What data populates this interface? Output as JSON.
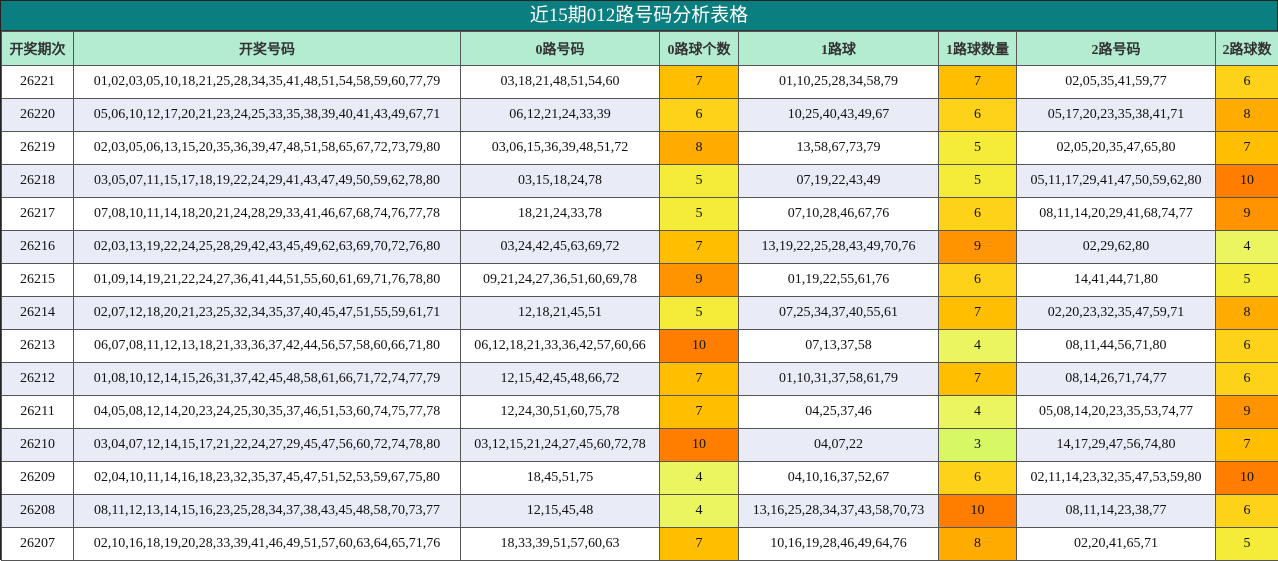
{
  "title": "近15期012路号码分析表格",
  "headers": [
    "开奖期次",
    "开奖号码",
    "0路号码",
    "0路球个数",
    "1路球",
    "1路球数量",
    "2路号码",
    "2路球数"
  ],
  "count_colors": {
    "3": "#d8f764",
    "4": "#eaf560",
    "5": "#f5ec3a",
    "6": "#ffd21a",
    "7": "#ffbf00",
    "8": "#ffab00",
    "9": "#ff9400",
    "10": "#ff7e00"
  },
  "rows": [
    {
      "period": "26221",
      "numbers": "01,02,03,05,10,18,21,25,28,34,35,41,48,51,54,58,59,60,77,79",
      "route0": "03,18,21,48,51,54,60",
      "count0": "7",
      "route1": "01,10,25,28,34,58,79",
      "count1": "7",
      "route2": "02,05,35,41,59,77",
      "count2": "6"
    },
    {
      "period": "26220",
      "numbers": "05,06,10,12,17,20,21,23,24,25,33,35,38,39,40,41,43,49,67,71",
      "route0": "06,12,21,24,33,39",
      "count0": "6",
      "route1": "10,25,40,43,49,67",
      "count1": "6",
      "route2": "05,17,20,23,35,38,41,71",
      "count2": "8"
    },
    {
      "period": "26219",
      "numbers": "02,03,05,06,13,15,20,35,36,39,47,48,51,58,65,67,72,73,79,80",
      "route0": "03,06,15,36,39,48,51,72",
      "count0": "8",
      "route1": "13,58,67,73,79",
      "count1": "5",
      "route2": "02,05,20,35,47,65,80",
      "count2": "7"
    },
    {
      "period": "26218",
      "numbers": "03,05,07,11,15,17,18,19,22,24,29,41,43,47,49,50,59,62,78,80",
      "route0": "03,15,18,24,78",
      "count0": "5",
      "route1": "07,19,22,43,49",
      "count1": "5",
      "route2": "05,11,17,29,41,47,50,59,62,80",
      "count2": "10"
    },
    {
      "period": "26217",
      "numbers": "07,08,10,11,14,18,20,21,24,28,29,33,41,46,67,68,74,76,77,78",
      "route0": "18,21,24,33,78",
      "count0": "5",
      "route1": "07,10,28,46,67,76",
      "count1": "6",
      "route2": "08,11,14,20,29,41,68,74,77",
      "count2": "9"
    },
    {
      "period": "26216",
      "numbers": "02,03,13,19,22,24,25,28,29,42,43,45,49,62,63,69,70,72,76,80",
      "route0": "03,24,42,45,63,69,72",
      "count0": "7",
      "route1": "13,19,22,25,28,43,49,70,76",
      "count1": "9",
      "route2": "02,29,62,80",
      "count2": "4"
    },
    {
      "period": "26215",
      "numbers": "01,09,14,19,21,22,24,27,36,41,44,51,55,60,61,69,71,76,78,80",
      "route0": "09,21,24,27,36,51,60,69,78",
      "count0": "9",
      "route1": "01,19,22,55,61,76",
      "count1": "6",
      "route2": "14,41,44,71,80",
      "count2": "5"
    },
    {
      "period": "26214",
      "numbers": "02,07,12,18,20,21,23,25,32,34,35,37,40,45,47,51,55,59,61,71",
      "route0": "12,18,21,45,51",
      "count0": "5",
      "route1": "07,25,34,37,40,55,61",
      "count1": "7",
      "route2": "02,20,23,32,35,47,59,71",
      "count2": "8"
    },
    {
      "period": "26213",
      "numbers": "06,07,08,11,12,13,18,21,33,36,37,42,44,56,57,58,60,66,71,80",
      "route0": "06,12,18,21,33,36,42,57,60,66",
      "count0": "10",
      "route1": "07,13,37,58",
      "count1": "4",
      "route2": "08,11,44,56,71,80",
      "count2": "6"
    },
    {
      "period": "26212",
      "numbers": "01,08,10,12,14,15,26,31,37,42,45,48,58,61,66,71,72,74,77,79",
      "route0": "12,15,42,45,48,66,72",
      "count0": "7",
      "route1": "01,10,31,37,58,61,79",
      "count1": "7",
      "route2": "08,14,26,71,74,77",
      "count2": "6"
    },
    {
      "period": "26211",
      "numbers": "04,05,08,12,14,20,23,24,25,30,35,37,46,51,53,60,74,75,77,78",
      "route0": "12,24,30,51,60,75,78",
      "count0": "7",
      "route1": "04,25,37,46",
      "count1": "4",
      "route2": "05,08,14,20,23,35,53,74,77",
      "count2": "9"
    },
    {
      "period": "26210",
      "numbers": "03,04,07,12,14,15,17,21,22,24,27,29,45,47,56,60,72,74,78,80",
      "route0": "03,12,15,21,24,27,45,60,72,78",
      "count0": "10",
      "route1": "04,07,22",
      "count1": "3",
      "route2": "14,17,29,47,56,74,80",
      "count2": "7"
    },
    {
      "period": "26209",
      "numbers": "02,04,10,11,14,16,18,23,32,35,37,45,47,51,52,53,59,67,75,80",
      "route0": "18,45,51,75",
      "count0": "4",
      "route1": "04,10,16,37,52,67",
      "count1": "6",
      "route2": "02,11,14,23,32,35,47,53,59,80",
      "count2": "10"
    },
    {
      "period": "26208",
      "numbers": "08,11,12,13,14,15,16,23,25,28,34,37,38,43,45,48,58,70,73,77",
      "route0": "12,15,45,48",
      "count0": "4",
      "route1": "13,16,25,28,34,37,43,58,70,73",
      "count1": "10",
      "route2": "08,11,14,23,38,77",
      "count2": "6"
    },
    {
      "period": "26207",
      "numbers": "02,10,16,18,19,20,28,33,39,41,46,49,51,57,60,63,64,65,71,76",
      "route0": "18,33,39,51,57,60,63",
      "count0": "7",
      "route1": "10,16,19,28,46,49,64,76",
      "count1": "8",
      "route2": "02,20,41,65,71",
      "count2": "5"
    }
  ]
}
